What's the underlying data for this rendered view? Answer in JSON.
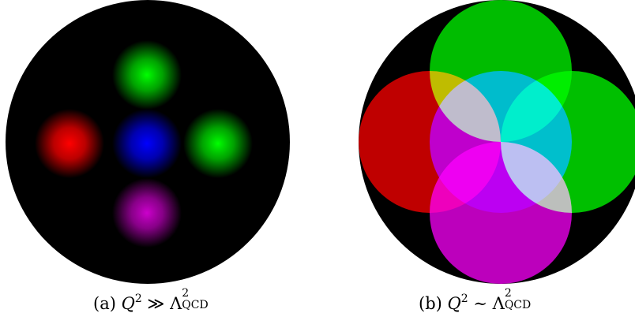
{
  "panels": [
    {
      "id": "a",
      "caption_label": "(a)",
      "caption_formula": {
        "lhs": "Q",
        "lhs_exp": "2",
        "relation": "≫",
        "rhs": "Λ",
        "rhs_exp": "2",
        "rhs_sub": "QCD"
      }
    },
    {
      "id": "b",
      "caption_label": "(b)",
      "caption_formula": {
        "lhs": "Q",
        "lhs_exp": "2",
        "relation": "∼",
        "rhs": "Λ",
        "rhs_exp": "2",
        "rhs_sub": "QCD"
      }
    }
  ],
  "colors": {
    "background_disc": "#000000",
    "green": "#00ee00",
    "red": "#ff0000",
    "blue": "#0000ff",
    "magenta": "#cc00cc",
    "white_overlap": "#ffffff"
  }
}
